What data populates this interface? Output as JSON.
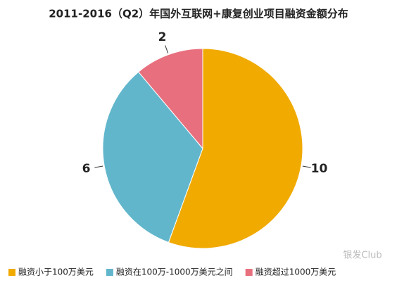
{
  "chart_data": {
    "type": "pie",
    "title": "2011-2016（Q2）年国外互联网+康复创业项目融资金额分布",
    "categories": [
      "融资小于100万美元",
      "融资在100万-1000万美元之间",
      "融资超过1000万美元"
    ],
    "values": [
      10,
      6,
      2
    ],
    "colors": [
      "#f0aa00",
      "#62b6cc",
      "#e8707e"
    ],
    "legend": "bottom",
    "watermark": "银发Club"
  }
}
